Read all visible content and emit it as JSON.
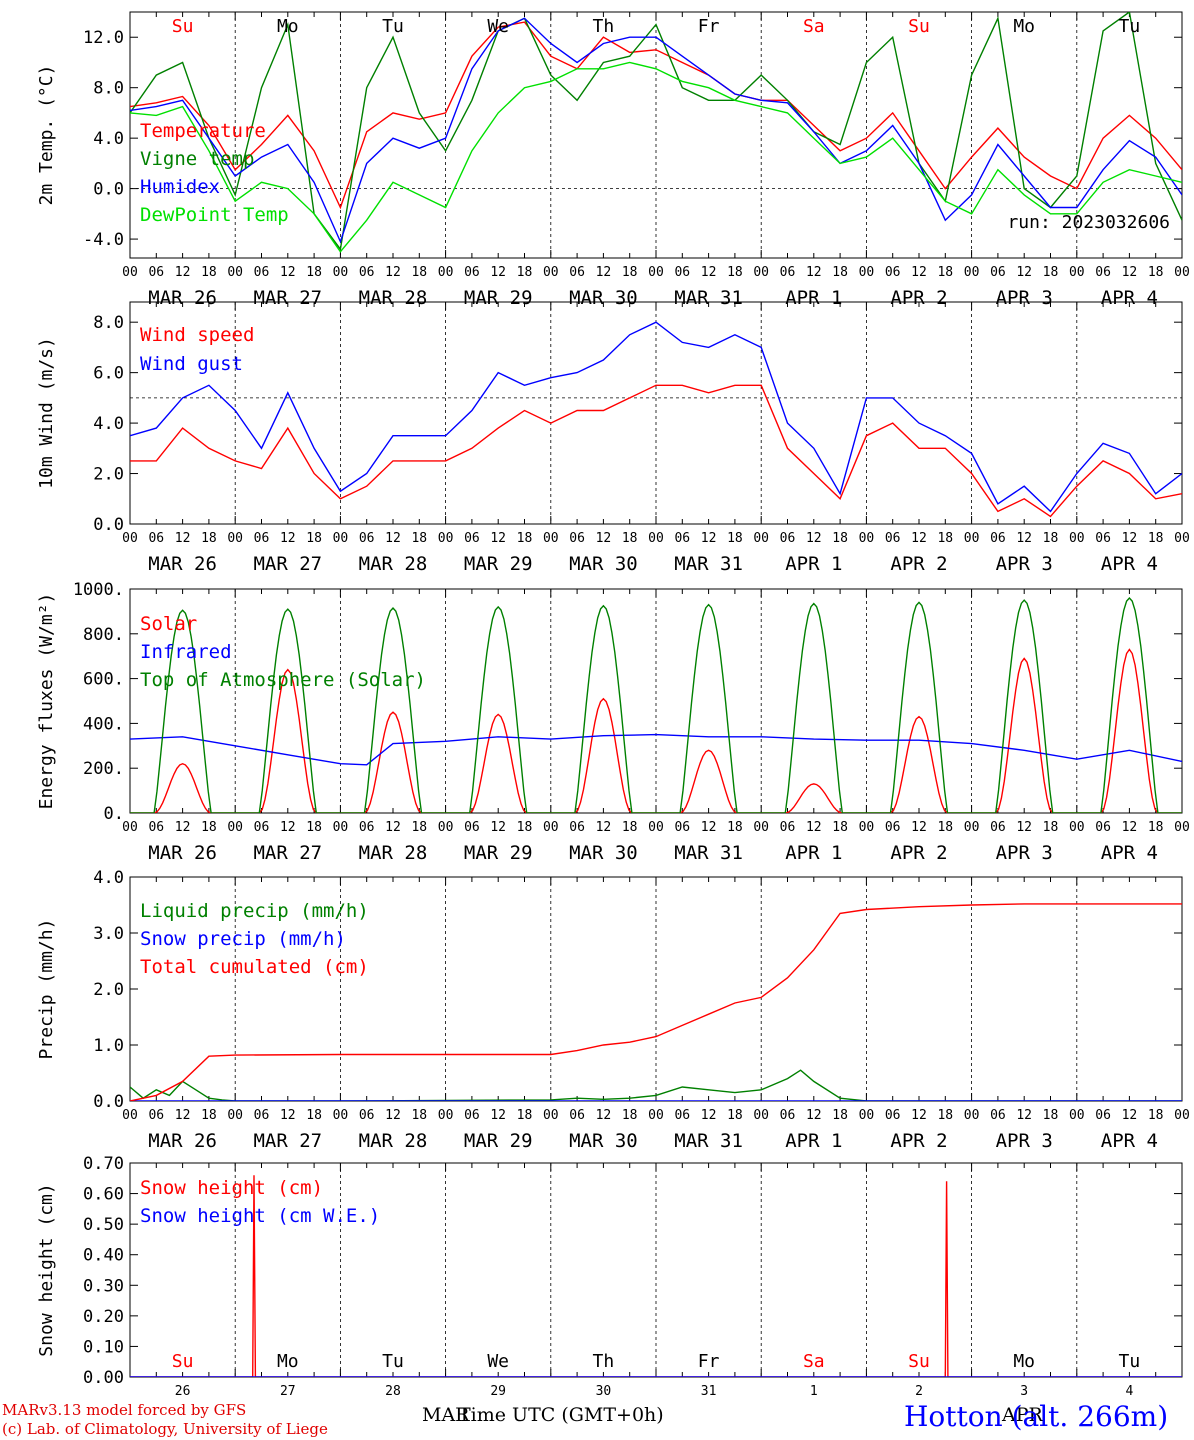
{
  "footer": {
    "credit_line1": "MARv3.13 model forced by GFS",
    "credit_line2": "(c) Lab. of Climatology, University of Liege",
    "xaxis_title": "Time UTC (GMT+0h)",
    "month_left": "MAR",
    "month_right": "APR",
    "station": "Hotton (alt. 266m)"
  },
  "colors": {
    "red": "#ff0000",
    "green": "#008000",
    "blue": "#0000ff",
    "lightgreen": "#00e000",
    "darkred": "#e00000"
  },
  "chart_data": [
    {
      "id": "temperature",
      "type": "line",
      "ylabel": "2m Temp. (°C)",
      "ylim": [
        -5.5,
        14.0
      ],
      "yticks": [
        "12.0",
        "8.0",
        "4.0",
        "0.0",
        "-4.0"
      ],
      "ytick_values": [
        12,
        8,
        4,
        0,
        -4
      ],
      "reference_line": 0,
      "annotation": "run: 2023032606",
      "day_names": [
        "Su",
        "Mo",
        "Tu",
        "We",
        "Th",
        "Fr",
        "Sa",
        "Su",
        "Mo",
        "Tu"
      ],
      "day_name_colors": [
        "#ff0000",
        "#000000",
        "#000000",
        "#000000",
        "#000000",
        "#000000",
        "#ff0000",
        "#ff0000",
        "#000000",
        "#000000"
      ],
      "hour_ticks": [
        "00",
        "06",
        "12",
        "18"
      ],
      "date_labels": [
        "MAR 26",
        "MAR 27",
        "MAR 28",
        "MAR 29",
        "MAR 30",
        "MAR 31",
        "APR  1",
        "APR  2",
        "APR  3",
        "APR  4"
      ],
      "series": [
        {
          "name": "Temperature",
          "color": "#ff0000",
          "x_hours": [
            0,
            6,
            12,
            18,
            24,
            30,
            36,
            42,
            48,
            54,
            60,
            66,
            72,
            78,
            84,
            90,
            96,
            102,
            108,
            114,
            120,
            126,
            132,
            138,
            144,
            150,
            156,
            162,
            168,
            174,
            180,
            186,
            192,
            198,
            204,
            210,
            216,
            222,
            228,
            234,
            240
          ],
          "values": [
            6.5,
            6.8,
            7.3,
            5.0,
            1.5,
            3.5,
            5.8,
            3.0,
            -1.5,
            4.5,
            6.0,
            5.5,
            6.0,
            10.5,
            12.8,
            13.2,
            10.5,
            9.5,
            12.0,
            10.8,
            11.0,
            10.0,
            9.0,
            7.5,
            7.0,
            7.0,
            5.0,
            3.0,
            4.0,
            6.0,
            3.0,
            0.0,
            2.5,
            4.8,
            2.5,
            1.0,
            0.0,
            4.0,
            5.8,
            4.0,
            1.5
          ]
        },
        {
          "name": "Vigne temp",
          "color": "#008000",
          "x_hours": [
            0,
            6,
            12,
            18,
            24,
            30,
            36,
            42,
            48,
            54,
            60,
            66,
            72,
            78,
            84,
            90,
            96,
            102,
            108,
            114,
            120,
            126,
            132,
            138,
            144,
            150,
            156,
            162,
            168,
            174,
            180,
            186,
            192,
            198,
            204,
            210,
            216,
            222,
            228,
            234,
            240
          ],
          "values": [
            6.0,
            9.0,
            10.0,
            4.0,
            -0.5,
            8.0,
            13.0,
            -2.0,
            -4.8,
            8.0,
            12.0,
            6.0,
            3.0,
            7.0,
            12.5,
            13.5,
            9.0,
            7.0,
            10.0,
            10.5,
            13.0,
            8.0,
            7.0,
            7.0,
            9.0,
            7.0,
            4.5,
            3.5,
            10.0,
            12.0,
            2.0,
            -1.0,
            9.0,
            13.5,
            0.0,
            -1.5,
            1.0,
            12.5,
            14.0,
            2.0,
            -2.5
          ]
        },
        {
          "name": "Humidex",
          "color": "#0000ff",
          "x_hours": [
            0,
            6,
            12,
            18,
            24,
            30,
            36,
            42,
            48,
            54,
            60,
            66,
            72,
            78,
            84,
            90,
            96,
            102,
            108,
            114,
            120,
            126,
            132,
            138,
            144,
            150,
            156,
            162,
            168,
            174,
            180,
            186,
            192,
            198,
            204,
            210,
            216,
            222,
            228,
            234,
            240
          ],
          "values": [
            6.2,
            6.5,
            7.0,
            4.0,
            1.0,
            2.5,
            3.5,
            0.5,
            -4.2,
            2.0,
            4.0,
            3.2,
            4.0,
            9.5,
            12.5,
            13.5,
            11.5,
            10.0,
            11.5,
            12.0,
            12.0,
            10.5,
            9.0,
            7.5,
            7.0,
            6.8,
            4.5,
            2.0,
            3.0,
            5.0,
            2.0,
            -2.5,
            -0.5,
            3.5,
            1.0,
            -1.5,
            -1.5,
            1.5,
            3.8,
            2.5,
            -0.5
          ]
        },
        {
          "name": "DewPoint Temp",
          "color": "#00e000",
          "x_hours": [
            0,
            6,
            12,
            18,
            24,
            30,
            36,
            42,
            48,
            54,
            60,
            66,
            72,
            78,
            84,
            90,
            96,
            102,
            108,
            114,
            120,
            126,
            132,
            138,
            144,
            150,
            156,
            162,
            168,
            174,
            180,
            186,
            192,
            198,
            204,
            210,
            216,
            222,
            228,
            234,
            240
          ],
          "values": [
            6.0,
            5.8,
            6.5,
            3.0,
            -1.0,
            0.5,
            0.0,
            -2.0,
            -5.0,
            -2.5,
            0.5,
            -0.5,
            -1.5,
            3.0,
            6.0,
            8.0,
            8.5,
            9.5,
            9.5,
            10.0,
            9.5,
            8.5,
            8.0,
            7.0,
            6.5,
            6.0,
            4.0,
            2.0,
            2.5,
            4.0,
            1.5,
            -1.0,
            -2.0,
            1.5,
            -0.5,
            -2.0,
            -2.0,
            0.5,
            1.5,
            1.0,
            0.5
          ]
        }
      ]
    },
    {
      "id": "wind",
      "type": "line",
      "ylabel": "10m Wind (m/s)",
      "ylim": [
        0,
        8.8
      ],
      "yticks": [
        "8.0",
        "6.0",
        "4.0",
        "2.0",
        "0.0"
      ],
      "ytick_values": [
        8,
        6,
        4,
        2,
        0
      ],
      "reference_line": 5,
      "hour_ticks": [
        "00",
        "06",
        "12",
        "18"
      ],
      "date_labels": [
        "MAR 26",
        "MAR 27",
        "MAR 28",
        "MAR 29",
        "MAR 30",
        "MAR 31",
        "APR  1",
        "APR  2",
        "APR  3",
        "APR  4"
      ],
      "series": [
        {
          "name": "Wind speed",
          "color": "#ff0000",
          "x_hours": [
            0,
            6,
            12,
            18,
            24,
            30,
            36,
            42,
            48,
            54,
            60,
            66,
            72,
            78,
            84,
            90,
            96,
            102,
            108,
            114,
            120,
            126,
            132,
            138,
            144,
            150,
            156,
            162,
            168,
            174,
            180,
            186,
            192,
            198,
            204,
            210,
            216,
            222,
            228,
            234,
            240
          ],
          "values": [
            2.5,
            2.5,
            3.8,
            3.0,
            2.5,
            2.2,
            3.8,
            2.0,
            1.0,
            1.5,
            2.5,
            2.5,
            2.5,
            3.0,
            3.8,
            4.5,
            4.0,
            4.5,
            4.5,
            5.0,
            5.5,
            5.5,
            5.2,
            5.5,
            5.5,
            3.0,
            2.0,
            1.0,
            3.5,
            4.0,
            3.0,
            3.0,
            2.0,
            0.5,
            1.0,
            0.3,
            1.5,
            2.5,
            2.0,
            1.0,
            1.2
          ]
        },
        {
          "name": "Wind gust",
          "color": "#0000ff",
          "x_hours": [
            0,
            6,
            12,
            18,
            24,
            30,
            36,
            42,
            48,
            54,
            60,
            66,
            72,
            78,
            84,
            90,
            96,
            102,
            108,
            114,
            120,
            126,
            132,
            138,
            144,
            150,
            156,
            162,
            168,
            174,
            180,
            186,
            192,
            198,
            204,
            210,
            216,
            222,
            228,
            234,
            240
          ],
          "values": [
            3.5,
            3.8,
            5.0,
            5.5,
            4.5,
            3.0,
            5.2,
            3.0,
            1.3,
            2.0,
            3.5,
            3.5,
            3.5,
            4.5,
            6.0,
            5.5,
            5.8,
            6.0,
            6.5,
            7.5,
            8.0,
            7.2,
            7.0,
            7.5,
            7.0,
            4.0,
            3.0,
            1.2,
            5.0,
            5.0,
            4.0,
            3.5,
            2.8,
            0.8,
            1.5,
            0.5,
            2.0,
            3.2,
            2.8,
            1.2,
            2.0
          ]
        }
      ]
    },
    {
      "id": "energy",
      "type": "line",
      "ylabel": "Energy fluxes (W/m²)",
      "ylim": [
        0,
        1000
      ],
      "yticks": [
        "1000.",
        "800.",
        "600.",
        "400.",
        "200.",
        "0."
      ],
      "ytick_values": [
        1000,
        800,
        600,
        400,
        200,
        0
      ],
      "hour_ticks": [
        "00",
        "06",
        "12",
        "18"
      ],
      "date_labels": [
        "MAR 26",
        "MAR 27",
        "MAR 28",
        "MAR 29",
        "MAR 30",
        "MAR 31",
        "APR  1",
        "APR  2",
        "APR  3",
        "APR  4"
      ],
      "daily_peaks": {
        "top_of_atmosphere": [
          905,
          910,
          915,
          920,
          925,
          930,
          935,
          940,
          950,
          960
        ],
        "solar": [
          220,
          640,
          450,
          440,
          510,
          280,
          130,
          430,
          690,
          730
        ]
      },
      "series": [
        {
          "name": "Solar",
          "color": "#ff0000"
        },
        {
          "name": "Infrared",
          "color": "#0000ff",
          "x_hours": [
            0,
            12,
            24,
            36,
            48,
            54,
            60,
            72,
            84,
            96,
            108,
            120,
            132,
            144,
            156,
            168,
            180,
            192,
            204,
            216,
            228,
            240
          ],
          "values": [
            330,
            340,
            300,
            260,
            220,
            215,
            310,
            320,
            340,
            330,
            345,
            350,
            340,
            340,
            330,
            325,
            325,
            310,
            280,
            240,
            280,
            230
          ]
        },
        {
          "name": "Top of Atmosphere (Solar)",
          "color": "#008000"
        }
      ]
    },
    {
      "id": "precip",
      "type": "line",
      "ylabel": "Precip (mm/h)",
      "ylim": [
        0,
        4.0
      ],
      "yticks": [
        "4.0",
        "3.0",
        "2.0",
        "1.0",
        "0.0"
      ],
      "ytick_values": [
        4,
        3,
        2,
        1,
        0
      ],
      "hour_ticks": [
        "00",
        "06",
        "12",
        "18"
      ],
      "date_labels": [
        "MAR 26",
        "MAR 27",
        "MAR 28",
        "MAR 29",
        "MAR 30",
        "MAR 31",
        "APR  1",
        "APR  2",
        "APR  3",
        "APR  4"
      ],
      "series": [
        {
          "name": "Liquid precip (mm/h)",
          "color": "#008000",
          "x_hours": [
            0,
            3,
            6,
            9,
            12,
            15,
            18,
            21,
            24,
            48,
            96,
            102,
            108,
            114,
            120,
            126,
            132,
            138,
            144,
            150,
            153,
            156,
            162,
            168,
            174,
            240
          ],
          "values": [
            0.25,
            0.05,
            0.2,
            0.1,
            0.35,
            0.2,
            0.05,
            0.02,
            0.0,
            0.0,
            0.02,
            0.05,
            0.03,
            0.05,
            0.1,
            0.25,
            0.2,
            0.15,
            0.2,
            0.4,
            0.55,
            0.35,
            0.05,
            0.0,
            0.0,
            0.0
          ]
        },
        {
          "name": "Snow precip (mm/h)",
          "color": "#0000ff",
          "x_hours": [
            0,
            240
          ],
          "values": [
            0.0,
            0.0
          ]
        },
        {
          "name": "Total cumulated (cm)",
          "color": "#ff0000",
          "x_hours": [
            0,
            6,
            12,
            18,
            24,
            48,
            72,
            96,
            102,
            108,
            114,
            120,
            126,
            132,
            138,
            144,
            150,
            156,
            162,
            168,
            180,
            192,
            204,
            216,
            240
          ],
          "values": [
            0.0,
            0.1,
            0.35,
            0.8,
            0.82,
            0.83,
            0.83,
            0.83,
            0.9,
            1.0,
            1.05,
            1.15,
            1.35,
            1.55,
            1.75,
            1.85,
            2.2,
            2.7,
            3.35,
            3.42,
            3.47,
            3.5,
            3.52,
            3.52,
            3.52
          ]
        }
      ]
    },
    {
      "id": "snow",
      "type": "line",
      "ylabel": "Snow height (cm)",
      "ylim": [
        0,
        0.7
      ],
      "yticks": [
        "0.70",
        "0.60",
        "0.50",
        "0.40",
        "0.30",
        "0.20",
        "0.10",
        "0.00"
      ],
      "ytick_values": [
        0.7,
        0.6,
        0.5,
        0.4,
        0.3,
        0.2,
        0.1,
        0.0
      ],
      "day_names": [
        "Su",
        "Mo",
        "Tu",
        "We",
        "Th",
        "Fr",
        "Sa",
        "Su",
        "Mo",
        "Tu"
      ],
      "day_name_colors": [
        "#ff0000",
        "#000000",
        "#000000",
        "#000000",
        "#000000",
        "#000000",
        "#ff0000",
        "#ff0000",
        "#000000",
        "#000000"
      ],
      "day_numbers": [
        "26",
        "27",
        "28",
        "29",
        "30",
        "31",
        "1",
        "2",
        "3",
        "4"
      ],
      "series": [
        {
          "name": "Snow height (cm)",
          "color": "#ff0000",
          "x_hours": [
            0,
            28,
            28.3,
            28.6,
            186,
            186.3,
            186.6,
            240
          ],
          "values": [
            0.0,
            0.0,
            0.66,
            0.0,
            0.0,
            0.64,
            0.0,
            0.0
          ]
        },
        {
          "name": "Snow height (cm W.E.)",
          "color": "#0000ff",
          "x_hours": [
            0,
            240
          ],
          "values": [
            0.0,
            0.0
          ]
        }
      ]
    }
  ]
}
